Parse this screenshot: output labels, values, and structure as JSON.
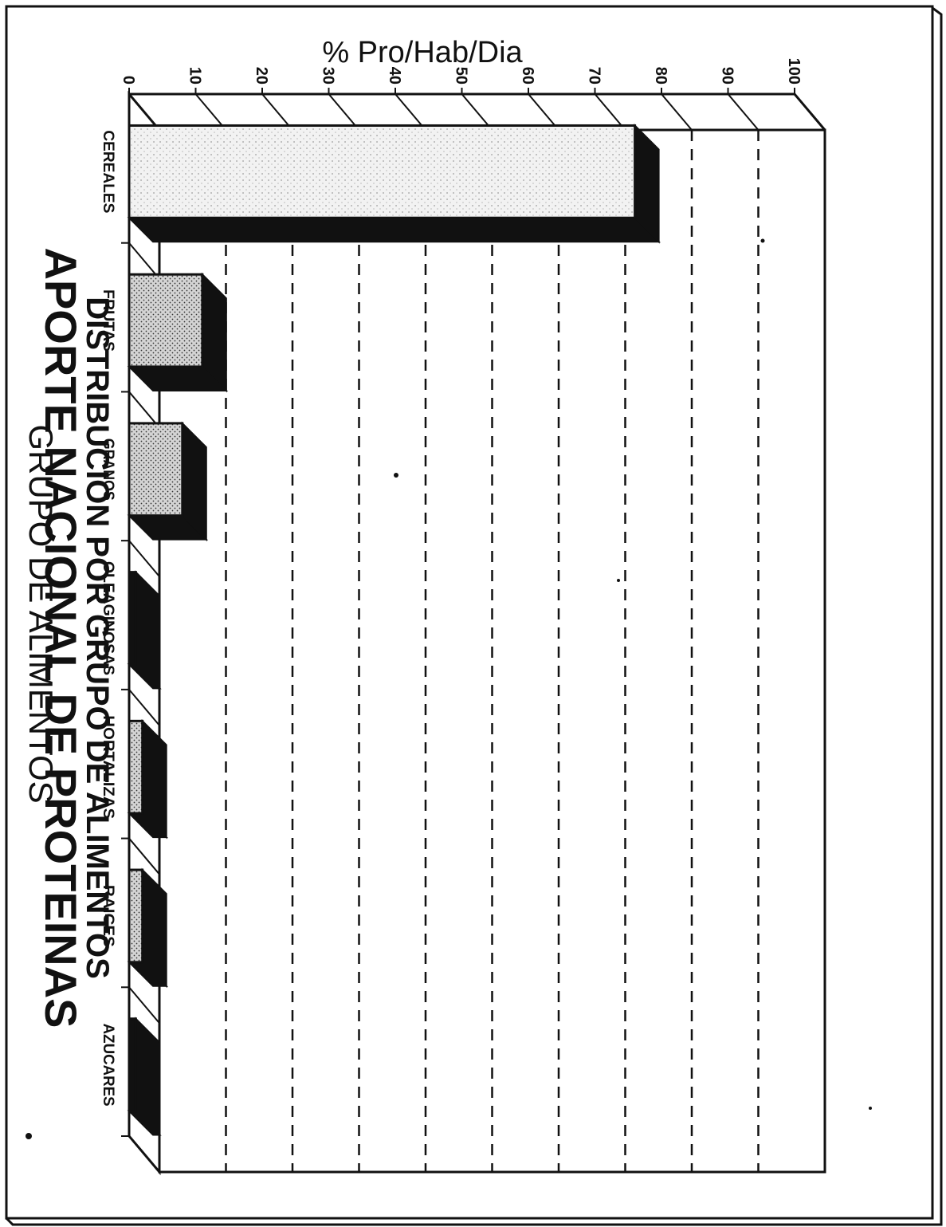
{
  "chart_data": {
    "type": "bar",
    "orientation": "vertical (page rotated 90° clockwise)",
    "title": "APORTE NACIONAL DE PROTEINAS",
    "subtitle": "DISTRIBUCION POR GRUPO DE ALIMENTOS",
    "xlabel": "GRUPO DE ALIMENTOS",
    "ylabel": "% Pro/Hab/Dia",
    "ylim": [
      0,
      100
    ],
    "yticks": [
      "0",
      "10",
      "20",
      "30",
      "40",
      "50",
      "60",
      "70",
      "80",
      "90",
      "100"
    ],
    "categories": [
      "CEREALES",
      "FRUTAS",
      "GRANOS",
      "OLEAGINOSAS",
      "HORTALIZAS",
      "RAICES",
      "AZUCARES"
    ],
    "values": [
      76,
      11,
      8,
      1,
      2,
      2,
      1
    ],
    "grid": true,
    "legend": "none",
    "fills": [
      "light-stipple",
      "stipple",
      "stipple",
      "black",
      "stipple",
      "stipple",
      "black"
    ]
  },
  "colors": {
    "ink": "#111111",
    "paper": "#ffffff",
    "stipple_light": "#e6e6e6",
    "stipple": "#c9c9c9"
  }
}
